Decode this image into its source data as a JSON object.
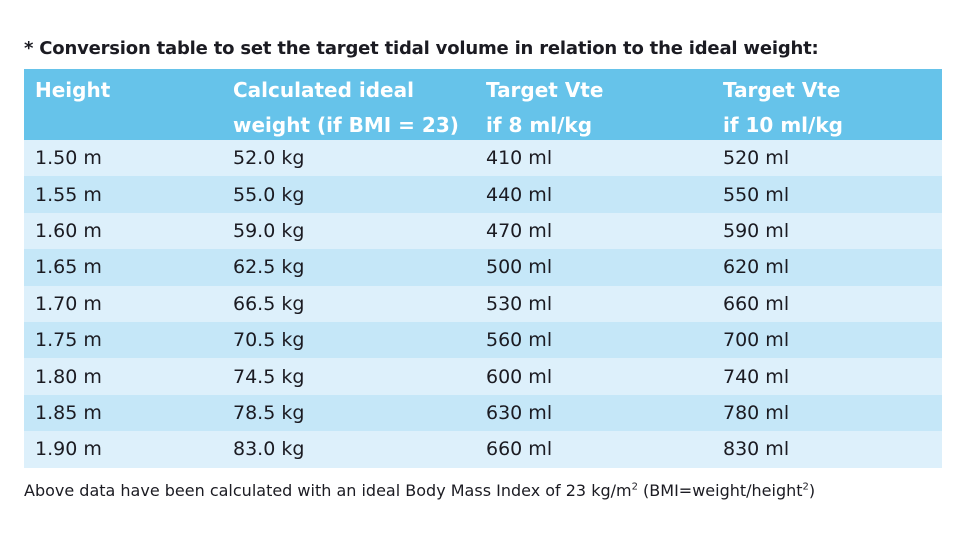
{
  "title": "* Conversion table to set the target tidal volume in relation to the ideal weight:",
  "table": {
    "headers": [
      {
        "line1": "Height",
        "line2": ""
      },
      {
        "line1": "Calculated ideal",
        "line2": "weight (if BMI = 23)"
      },
      {
        "line1": "Target Vte",
        "line2": "if 8 ml/kg"
      },
      {
        "line1": "Target Vte",
        "line2": "if 10 ml/kg"
      }
    ],
    "rows": [
      [
        "1.50 m",
        "52.0 kg",
        "410 ml",
        "520 ml"
      ],
      [
        "1.55 m",
        "55.0 kg",
        "440 ml",
        "550 ml"
      ],
      [
        "1.60 m",
        "59.0 kg",
        "470 ml",
        "590 ml"
      ],
      [
        "1.65 m",
        "62.5 kg",
        "500 ml",
        "620 ml"
      ],
      [
        "1.70 m",
        "66.5 kg",
        "530 ml",
        "660 ml"
      ],
      [
        "1.75 m",
        "70.5 kg",
        "560 ml",
        "700 ml"
      ],
      [
        "1.80 m",
        "74.5 kg",
        "600 ml",
        "740 ml"
      ],
      [
        "1.85 m",
        "78.5 kg",
        "630 ml",
        "780 ml"
      ],
      [
        "1.90 m",
        "83.0 kg",
        "660 ml",
        "830 ml"
      ]
    ]
  },
  "footnote": {
    "text": "Above data have been calculated with an ideal Body Mass Index of 23 kg/m",
    "sup1": "2",
    "text2": " (BMI=weight/height",
    "sup2": "2",
    "text3": ")"
  },
  "colors": {
    "header_bg": "#66c3ea",
    "row_light": "#ddf0fb",
    "row_dark": "#c5e7f8"
  }
}
